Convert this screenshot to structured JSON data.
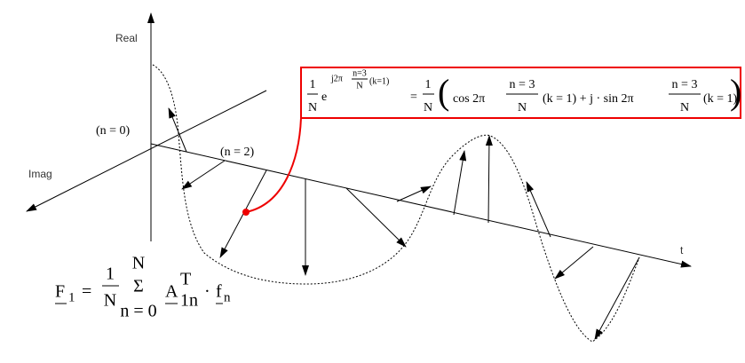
{
  "axes": {
    "real": "Real",
    "imag": "Imag",
    "time": "t"
  },
  "labels": {
    "n0": "(n = 0)",
    "n2": "(n = 2)"
  },
  "box_formula": {
    "frac_num": "1",
    "frac_den": "N",
    "base": "e",
    "exp_prefix": "j2π",
    "exp_frac_num": "n=3",
    "exp_frac_den": "N",
    "exp_suffix": "(k=1)",
    "equals": "=",
    "frac2_num": "1",
    "frac2_den": "N",
    "open": "(",
    "cos": "cos 2π",
    "frac3_num": "n = 3",
    "frac3_den": "N",
    "middle": "(k = 1) + j · sin 2π",
    "frac4_num": "n = 3",
    "frac4_den": "N",
    "end": "(k = 1)",
    "close": ")"
  },
  "bottom_formula": {
    "lhs": "F",
    "lhs_sub": "1",
    "equals": "=",
    "frac_num": "1",
    "frac_den": "N",
    "sum_top": "N",
    "sigma": "Σ",
    "sum_bottom": "n = 0",
    "a": "A",
    "a_sup": "T",
    "a_sub": "1n",
    "dot": "·",
    "f": "f",
    "f_sub": "n"
  }
}
